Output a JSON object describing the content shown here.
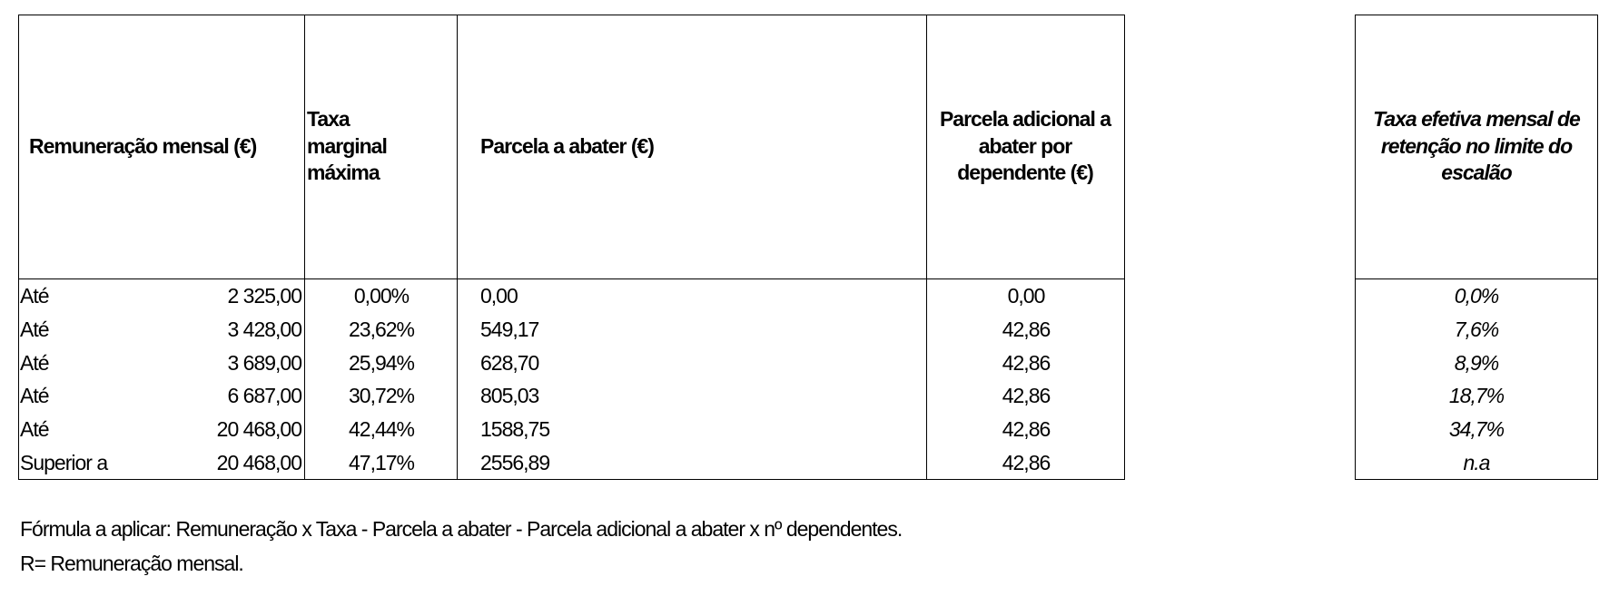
{
  "table": {
    "header": [
      "Remuneração mensal (€)",
      "Taxa marginal máxima",
      "Parcela a abater (€)",
      "Parcela adicional a abater por dependente (€)"
    ],
    "rows": [
      [
        "Até",
        "2 325,00",
        "0,00%",
        "0,00",
        "0,00"
      ],
      [
        "Até",
        "3 428,00",
        "23,62%",
        "549,17",
        "42,86"
      ],
      [
        "Até",
        "3 689,00",
        "25,94%",
        "628,70",
        "42,86"
      ],
      [
        "Até",
        "6 687,00",
        "30,72%",
        "805,03",
        "42,86"
      ],
      [
        "Até",
        "20 468,00",
        "42,44%",
        "1588,75",
        "42,86"
      ],
      [
        "Superior a",
        "20 468,00",
        "47,17%",
        "2556,89",
        "42,86"
      ]
    ]
  },
  "effective_table": {
    "header": "Taxa efetiva mensal de retenção no limite do escalão",
    "rows": [
      "0,0%",
      "7,6%",
      "8,9%",
      "18,7%",
      "34,7%",
      "n.a"
    ]
  },
  "notes": [
    "Fórmula a aplicar: Remuneração x Taxa - Parcela a abater - Parcela adicional a abater x nº dependentes.",
    "R= Remuneração mensal."
  ]
}
